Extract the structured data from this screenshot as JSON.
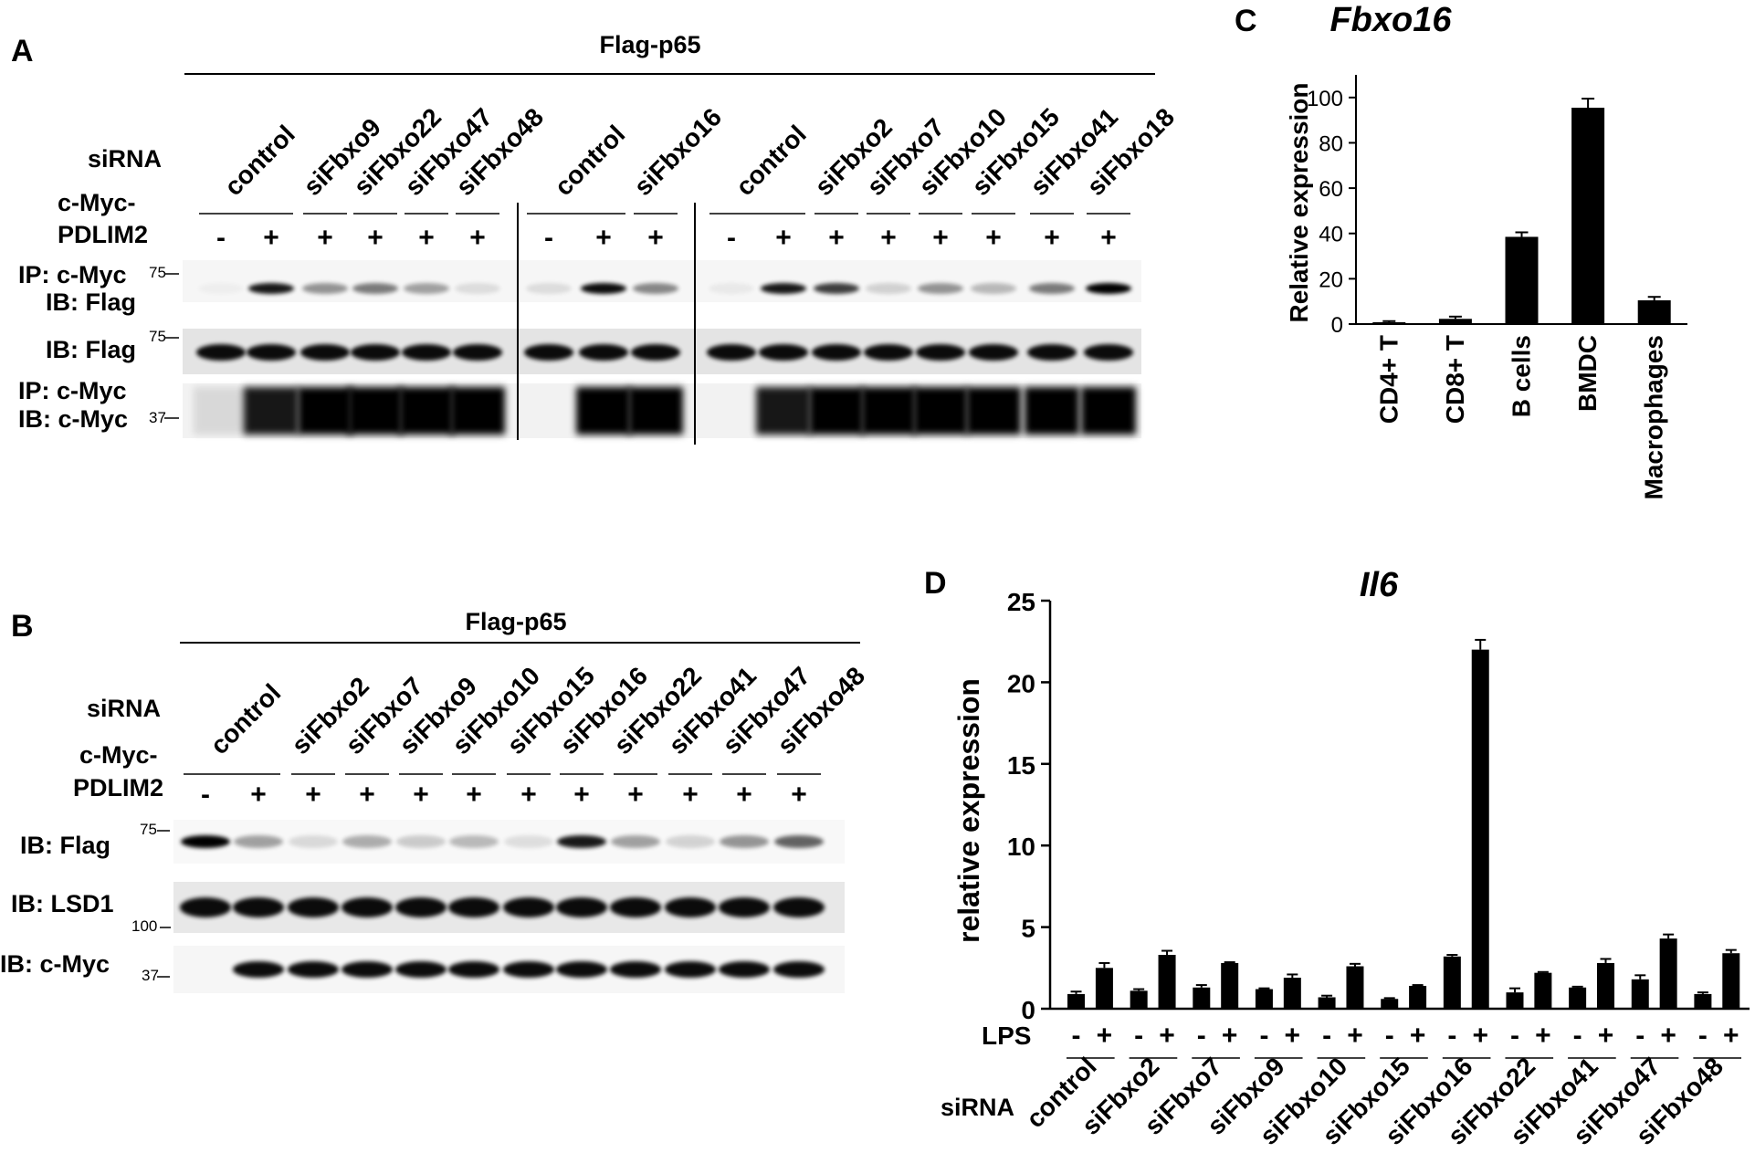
{
  "panel_a": {
    "letter": "A",
    "header": "Flag-p65",
    "sirna_label": "siRNA",
    "myc_label_1": "c-Myc-",
    "myc_label_2": "PDLIM2",
    "groups": [
      {
        "label": "control",
        "signs": [
          "-",
          "+"
        ]
      },
      {
        "label": "siFbxo9",
        "signs": [
          "+"
        ]
      },
      {
        "label": "siFbxo22",
        "signs": [
          "+"
        ]
      },
      {
        "label": "siFbxo47",
        "signs": [
          "+"
        ]
      },
      {
        "label": "siFbxo48",
        "signs": [
          "+"
        ]
      },
      {
        "label": "control",
        "signs": [
          "-",
          "+"
        ]
      },
      {
        "label": "siFbxo16",
        "signs": [
          "+"
        ]
      },
      {
        "label": "control",
        "signs": [
          "-",
          "+"
        ]
      },
      {
        "label": "siFbxo2",
        "signs": [
          "+"
        ]
      },
      {
        "label": "siFbxo7",
        "signs": [
          "+"
        ]
      },
      {
        "label": "siFbxo10",
        "signs": [
          "+"
        ]
      },
      {
        "label": "siFbxo15",
        "signs": [
          "+"
        ]
      },
      {
        "label": "siFbxo41",
        "signs": [
          "+"
        ]
      },
      {
        "label": "siFbxo18",
        "signs": [
          "+"
        ]
      }
    ],
    "rows": [
      {
        "line1": "IP: c-Myc",
        "line2": "IB: Flag",
        "marker": "75"
      },
      {
        "line1": "IB: Flag",
        "marker": "75"
      },
      {
        "line1": "IP: c-Myc",
        "line2": "IB: c-Myc",
        "marker": "37"
      }
    ]
  },
  "panel_b": {
    "letter": "B",
    "header": "Flag-p65",
    "sirna_label": "siRNA",
    "myc_label_1": "c-Myc-",
    "myc_label_2": "PDLIM2",
    "groups": [
      {
        "label": "control",
        "signs": [
          "-",
          "+"
        ]
      },
      {
        "label": "siFbxo2",
        "signs": [
          "+"
        ]
      },
      {
        "label": "siFbxo7",
        "signs": [
          "+"
        ]
      },
      {
        "label": "siFbxo9",
        "signs": [
          "+"
        ]
      },
      {
        "label": "siFbxo10",
        "signs": [
          "+"
        ]
      },
      {
        "label": "siFbxo15",
        "signs": [
          "+"
        ]
      },
      {
        "label": "siFbxo16",
        "signs": [
          "+"
        ]
      },
      {
        "label": "siFbxo22",
        "signs": [
          "+"
        ]
      },
      {
        "label": "siFbxo41",
        "signs": [
          "+"
        ]
      },
      {
        "label": "siFbxo47",
        "signs": [
          "+"
        ]
      },
      {
        "label": "siFbxo48",
        "signs": [
          "+"
        ]
      }
    ],
    "rows": [
      {
        "line1": "IB: Flag",
        "marker": "75"
      },
      {
        "line1": "IB: LSD1",
        "marker": "100"
      },
      {
        "line1": "IB: c-Myc",
        "marker": "37"
      }
    ]
  },
  "chart_data": [
    {
      "panel": "C",
      "type": "bar",
      "title": "Fbxo16",
      "ylabel": "Relative expression",
      "xlabel": "",
      "ylim": [
        0,
        110
      ],
      "yticks": [
        0,
        20,
        40,
        60,
        80,
        100
      ],
      "categories": [
        "CD4+ T",
        "CD8+ T",
        "B cells",
        "BMDC",
        "Macrophages"
      ],
      "values": [
        0.8,
        2.3,
        38.5,
        95.5,
        10.5
      ],
      "errors": [
        0.5,
        1.0,
        2.0,
        4.0,
        1.5
      ],
      "color": "#000000",
      "grid": false,
      "legend": "none"
    },
    {
      "panel": "D",
      "type": "bar",
      "title": "Il6",
      "ylabel": "relative expression",
      "xlabel": "",
      "ylim": [
        0,
        25
      ],
      "yticks": [
        0,
        5,
        10,
        15,
        20,
        25
      ],
      "lps_label": "LPS",
      "sirna_label": "siRNA",
      "categories": [
        "control",
        "siFbxo2",
        "siFbxo7",
        "siFbxo9",
        "siFbxo10",
        "siFbxo15",
        "siFbxo16",
        "siFbxo22",
        "siFbxo41",
        "siFbxo47",
        "siFbxo48"
      ],
      "series": [
        {
          "treatment": "-",
          "values": [
            0.9,
            1.1,
            1.3,
            1.2,
            0.7,
            0.6,
            3.2,
            1.0,
            1.3,
            1.8,
            0.9
          ],
          "errors": [
            0.15,
            0.1,
            0.15,
            0.05,
            0.1,
            0.05,
            0.1,
            0.25,
            0.05,
            0.25,
            0.1
          ]
        },
        {
          "treatment": "+",
          "values": [
            2.5,
            3.3,
            2.8,
            1.9,
            2.6,
            1.4,
            22.0,
            2.2,
            2.8,
            4.3,
            3.4
          ],
          "errors": [
            0.3,
            0.25,
            0.05,
            0.2,
            0.15,
            0.05,
            0.6,
            0.05,
            0.25,
            0.25,
            0.2
          ]
        }
      ],
      "color": "#000000",
      "grid": false,
      "legend": "none"
    }
  ]
}
